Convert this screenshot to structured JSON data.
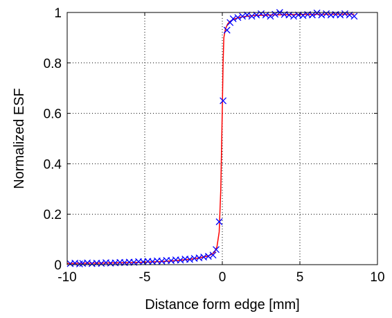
{
  "chart_data": {
    "type": "line",
    "title": "",
    "xlabel": "Distance form edge [mm]",
    "ylabel": "Normalized ESF",
    "xlim": [
      -10,
      10
    ],
    "ylim": [
      0,
      1
    ],
    "xticks": [
      -10,
      -5,
      0,
      5,
      10
    ],
    "yticks": [
      0,
      0.2,
      0.4,
      0.6,
      0.8,
      1
    ],
    "xtick_labels": [
      "-10",
      "-5",
      "0",
      "5",
      "10"
    ],
    "ytick_labels": [
      "0",
      "0.2",
      "0.4",
      "0.6",
      "0.8",
      "1"
    ],
    "grid": "dotted",
    "series": [
      {
        "name": "",
        "kind": "fit-line",
        "color": "#ff0000",
        "x": [
          -10,
          -8,
          -6,
          -4,
          -3,
          -2,
          -1.5,
          -1,
          -0.7,
          -0.5,
          -0.35,
          -0.2,
          -0.1,
          0,
          0.05,
          0.1,
          0.2,
          0.35,
          0.5,
          0.8,
          1.2,
          2,
          3,
          5,
          7,
          8.5
        ],
        "y": [
          0.005,
          0.006,
          0.008,
          0.012,
          0.016,
          0.022,
          0.027,
          0.033,
          0.04,
          0.05,
          0.07,
          0.13,
          0.3,
          0.62,
          0.8,
          0.9,
          0.935,
          0.955,
          0.965,
          0.975,
          0.982,
          0.988,
          0.99,
          0.992,
          0.993,
          0.993
        ]
      },
      {
        "name": "",
        "kind": "markers",
        "color": "#0000ff",
        "marker": "x",
        "x": [
          -9.8,
          -9.5,
          -9.2,
          -9.0,
          -8.7,
          -8.4,
          -8.1,
          -7.8,
          -7.5,
          -7.2,
          -6.9,
          -6.6,
          -6.3,
          -6.0,
          -5.7,
          -5.4,
          -5.1,
          -4.8,
          -4.5,
          -4.2,
          -3.9,
          -3.6,
          -3.3,
          -3.0,
          -2.7,
          -2.4,
          -2.1,
          -1.8,
          -1.5,
          -1.2,
          -0.9,
          -0.6,
          -0.4,
          -0.2,
          0.05,
          0.3,
          0.5,
          0.7,
          1.0,
          1.3,
          1.6,
          1.9,
          2.2,
          2.5,
          2.8,
          3.1,
          3.4,
          3.7,
          4.0,
          4.3,
          4.6,
          4.9,
          5.2,
          5.5,
          5.8,
          6.1,
          6.4,
          6.7,
          7.0,
          7.3,
          7.6,
          7.9,
          8.2,
          8.5
        ],
        "y": [
          0.004,
          0.006,
          0.003,
          0.005,
          0.007,
          0.004,
          0.006,
          0.005,
          0.008,
          0.006,
          0.007,
          0.009,
          0.008,
          0.01,
          0.009,
          0.012,
          0.011,
          0.013,
          0.012,
          0.015,
          0.014,
          0.017,
          0.016,
          0.019,
          0.018,
          0.022,
          0.021,
          0.025,
          0.027,
          0.03,
          0.033,
          0.038,
          0.06,
          0.17,
          0.65,
          0.93,
          0.96,
          0.975,
          0.98,
          0.985,
          0.99,
          0.985,
          0.99,
          0.995,
          0.99,
          0.985,
          0.993,
          1.0,
          0.992,
          0.99,
          0.985,
          0.99,
          0.988,
          0.992,
          0.99,
          0.998,
          0.99,
          0.995,
          0.99,
          0.992,
          0.99,
          0.995,
          0.99,
          0.985
        ]
      }
    ]
  }
}
